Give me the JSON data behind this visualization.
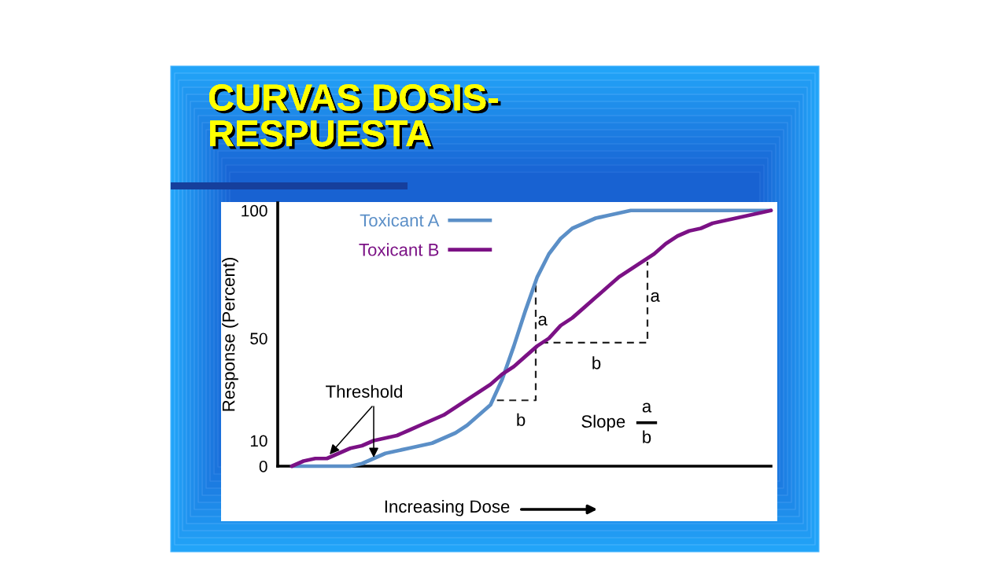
{
  "chart_data": {
    "type": "line",
    "title": "CURVAS DOSIS-\nRESPUESTA",
    "xlabel": "Increasing Dose",
    "ylabel": "Response (Percent)",
    "categories": [
      null,
      null,
      null,
      null,
      null,
      null,
      null,
      null,
      null,
      null,
      null,
      null,
      null,
      null,
      null,
      null,
      null,
      null,
      null,
      null,
      null,
      null,
      null,
      null,
      null,
      null,
      null,
      null,
      null,
      null,
      null,
      null,
      null,
      null,
      null,
      null,
      null,
      null,
      null,
      null,
      null,
      null
    ],
    "series": [
      {
        "name": "Toxicant A",
        "color": "#5b8fc7",
        "values": [
          0,
          0,
          0,
          0,
          0,
          0,
          1,
          3,
          5,
          6,
          7,
          8,
          9,
          11,
          13,
          16,
          20,
          24,
          34,
          47,
          61,
          74,
          83,
          89,
          93,
          95,
          97,
          98,
          99,
          100,
          100,
          100,
          100,
          100,
          100,
          100,
          100,
          100,
          100,
          100,
          100,
          100
        ]
      },
      {
        "name": "Toxicant B",
        "color": "#7b1185",
        "values": [
          0,
          2,
          3,
          3,
          5,
          7,
          8,
          10,
          11,
          12,
          14,
          16,
          18,
          20,
          23,
          26,
          29,
          32,
          36,
          39,
          43,
          47,
          50,
          55,
          58,
          62,
          66,
          70,
          74,
          77,
          80,
          83,
          87,
          90,
          92,
          93,
          95,
          96,
          97,
          98,
          99,
          100
        ]
      }
    ],
    "ylim": [
      0,
      103
    ],
    "yticks": [
      0,
      10,
      50,
      100
    ],
    "tick_labels": "y",
    "legend": "top left",
    "annotations": [
      "Threshold",
      "a",
      "b",
      "a",
      "b",
      "Slope",
      "a",
      "b"
    ]
  }
}
